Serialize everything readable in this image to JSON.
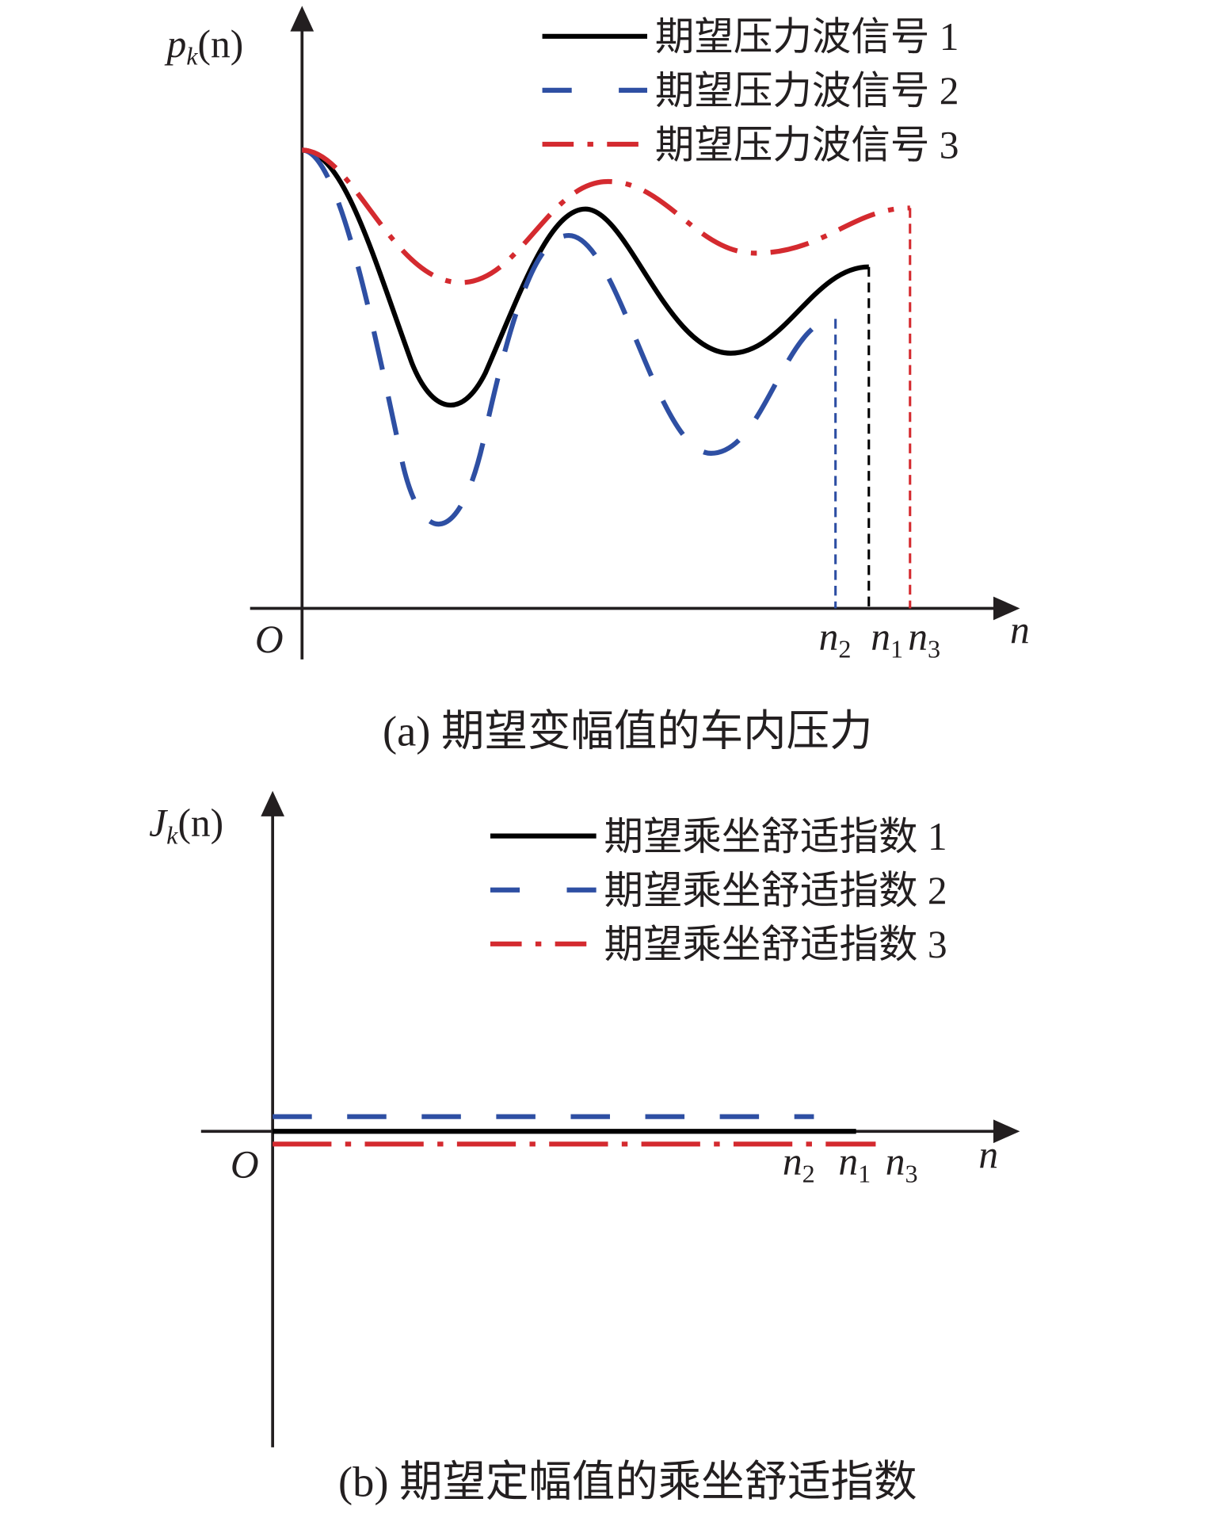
{
  "panels": [
    {
      "y_label": {
        "symbol": "p",
        "subscript": "k",
        "argument": "(n)"
      },
      "origin": "O",
      "x_label": "n",
      "legend": [
        "期望压力波信号 1",
        "期望压力波信号 2",
        "期望压力波信号 3"
      ],
      "end_labels": [
        {
          "symbol": "n",
          "subscript": "2"
        },
        {
          "symbol": "n",
          "subscript": "1"
        },
        {
          "symbol": "n",
          "subscript": "3"
        }
      ],
      "caption": "(a) 期望变幅值的车内压力"
    },
    {
      "y_label": {
        "symbol": "J",
        "subscript": "k",
        "argument": "(n)"
      },
      "origin": "O",
      "x_label": "n",
      "legend": [
        "期望乘坐舒适指数 1",
        "期望乘坐舒适指数 2",
        "期望乘坐舒适指数 3"
      ],
      "end_labels": [
        {
          "symbol": "n",
          "subscript": "2"
        },
        {
          "symbol": "n",
          "subscript": "1"
        },
        {
          "symbol": "n",
          "subscript": "3"
        }
      ],
      "caption": "(b) 期望定幅值的乘坐舒适指数"
    }
  ]
}
